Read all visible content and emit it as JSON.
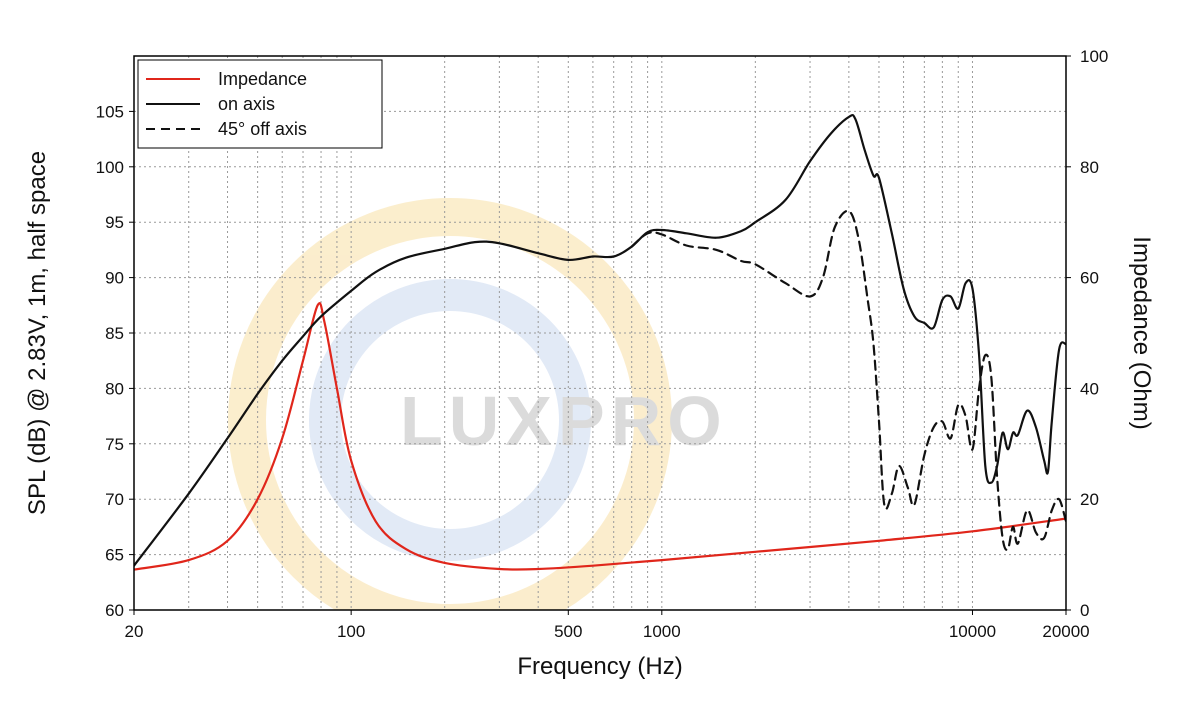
{
  "chart_data": {
    "type": "line",
    "xlabel": "Frequency (Hz)",
    "ylabel": "SPL (dB) @ 2.83V, 1m, half space",
    "y2label": "Impedance (Ohm)",
    "xscale": "log",
    "xlim": [
      20,
      20000
    ],
    "ylim": [
      60,
      110
    ],
    "y2lim": [
      0,
      100
    ],
    "x_ticks": [
      20,
      100,
      500,
      1000,
      10000,
      20000
    ],
    "x_tick_labels": [
      "20",
      "100",
      "500",
      "1000",
      "10000",
      "20000"
    ],
    "y_ticks": [
      60,
      65,
      70,
      75,
      80,
      85,
      90,
      95,
      100,
      105
    ],
    "y_tick_labels": [
      "60",
      "65",
      "70",
      "75",
      "80",
      "85",
      "90",
      "95",
      "100",
      "105"
    ],
    "y2_ticks": [
      0,
      20,
      40,
      60,
      80,
      100
    ],
    "y2_tick_labels": [
      "0",
      "20",
      "40",
      "60",
      "80",
      "100"
    ],
    "grid": true,
    "legend_position": "top-left",
    "watermark": "LUXPRO",
    "series": [
      {
        "name": "Impedance",
        "axis": "right",
        "color": "#e0261b",
        "dash": "solid",
        "points": [
          [
            20,
            7.3
          ],
          [
            30,
            9
          ],
          [
            40,
            12.5
          ],
          [
            50,
            20
          ],
          [
            60,
            31
          ],
          [
            70,
            45
          ],
          [
            78,
            55
          ],
          [
            82,
            52
          ],
          [
            90,
            40
          ],
          [
            100,
            27
          ],
          [
            120,
            16
          ],
          [
            150,
            11
          ],
          [
            200,
            8.5
          ],
          [
            300,
            7.4
          ],
          [
            400,
            7.4
          ],
          [
            600,
            8
          ],
          [
            1000,
            9
          ],
          [
            2000,
            10.5
          ],
          [
            5000,
            12.5
          ],
          [
            10000,
            14.2
          ],
          [
            20000,
            16.5
          ]
        ]
      },
      {
        "name": "on axis",
        "axis": "left",
        "color": "#111111",
        "dash": "solid",
        "points": [
          [
            20,
            64
          ],
          [
            30,
            70.5
          ],
          [
            40,
            75.5
          ],
          [
            50,
            79.5
          ],
          [
            60,
            82.5
          ],
          [
            70,
            84.7
          ],
          [
            80,
            86.5
          ],
          [
            100,
            88.8
          ],
          [
            120,
            90.5
          ],
          [
            150,
            91.8
          ],
          [
            200,
            92.6
          ],
          [
            250,
            93.2
          ],
          [
            300,
            93.1
          ],
          [
            400,
            92.2
          ],
          [
            500,
            91.6
          ],
          [
            600,
            91.9
          ],
          [
            700,
            91.9
          ],
          [
            800,
            92.8
          ],
          [
            900,
            94.1
          ],
          [
            1000,
            94.3
          ],
          [
            1200,
            94
          ],
          [
            1500,
            93.6
          ],
          [
            1800,
            94.2
          ],
          [
            2000,
            95
          ],
          [
            2500,
            97
          ],
          [
            3000,
            100.5
          ],
          [
            3500,
            103
          ],
          [
            4000,
            104.5
          ],
          [
            4200,
            104.3
          ],
          [
            4500,
            101.5
          ],
          [
            4800,
            99.2
          ],
          [
            5000,
            99
          ],
          [
            5500,
            94
          ],
          [
            6000,
            89
          ],
          [
            6500,
            86.5
          ],
          [
            7000,
            85.9
          ],
          [
            7500,
            85.5
          ],
          [
            8000,
            88
          ],
          [
            8500,
            88.3
          ],
          [
            9000,
            87.2
          ],
          [
            9500,
            89.5
          ],
          [
            10000,
            89
          ],
          [
            10500,
            83
          ],
          [
            11000,
            73
          ],
          [
            11500,
            71.5
          ],
          [
            12000,
            73
          ],
          [
            12500,
            76
          ],
          [
            13000,
            74.5
          ],
          [
            13500,
            76
          ],
          [
            14000,
            75.8
          ],
          [
            15000,
            78
          ],
          [
            16000,
            76.5
          ],
          [
            17000,
            73.5
          ],
          [
            17500,
            72.5
          ],
          [
            18000,
            77
          ],
          [
            19000,
            83.5
          ],
          [
            20000,
            84
          ]
        ]
      },
      {
        "name": "45° off axis",
        "axis": "left",
        "color": "#111111",
        "dash": "dashed",
        "points": [
          [
            800,
            92.8
          ],
          [
            900,
            94
          ],
          [
            1000,
            93.9
          ],
          [
            1200,
            92.9
          ],
          [
            1500,
            92.5
          ],
          [
            1800,
            91.5
          ],
          [
            2000,
            91.2
          ],
          [
            2500,
            89.5
          ],
          [
            3000,
            88.3
          ],
          [
            3300,
            90
          ],
          [
            3600,
            94.5
          ],
          [
            4000,
            96
          ],
          [
            4300,
            93.5
          ],
          [
            4600,
            88
          ],
          [
            4800,
            84
          ],
          [
            5000,
            77
          ],
          [
            5200,
            69.5
          ],
          [
            5500,
            70.5
          ],
          [
            5800,
            73
          ],
          [
            6200,
            71
          ],
          [
            6500,
            69.5
          ],
          [
            7000,
            74
          ],
          [
            7500,
            76.5
          ],
          [
            8000,
            77
          ],
          [
            8500,
            75.5
          ],
          [
            9000,
            78.5
          ],
          [
            9500,
            77.5
          ],
          [
            10000,
            74.5
          ],
          [
            10500,
            80
          ],
          [
            11000,
            83
          ],
          [
            11500,
            81
          ],
          [
            12000,
            72
          ],
          [
            12500,
            66.5
          ],
          [
            13000,
            65.5
          ],
          [
            13500,
            67.5
          ],
          [
            14000,
            66
          ],
          [
            15000,
            69
          ],
          [
            16000,
            67
          ],
          [
            17000,
            66.5
          ],
          [
            18000,
            69
          ],
          [
            19000,
            70
          ],
          [
            20000,
            68
          ]
        ]
      }
    ]
  }
}
